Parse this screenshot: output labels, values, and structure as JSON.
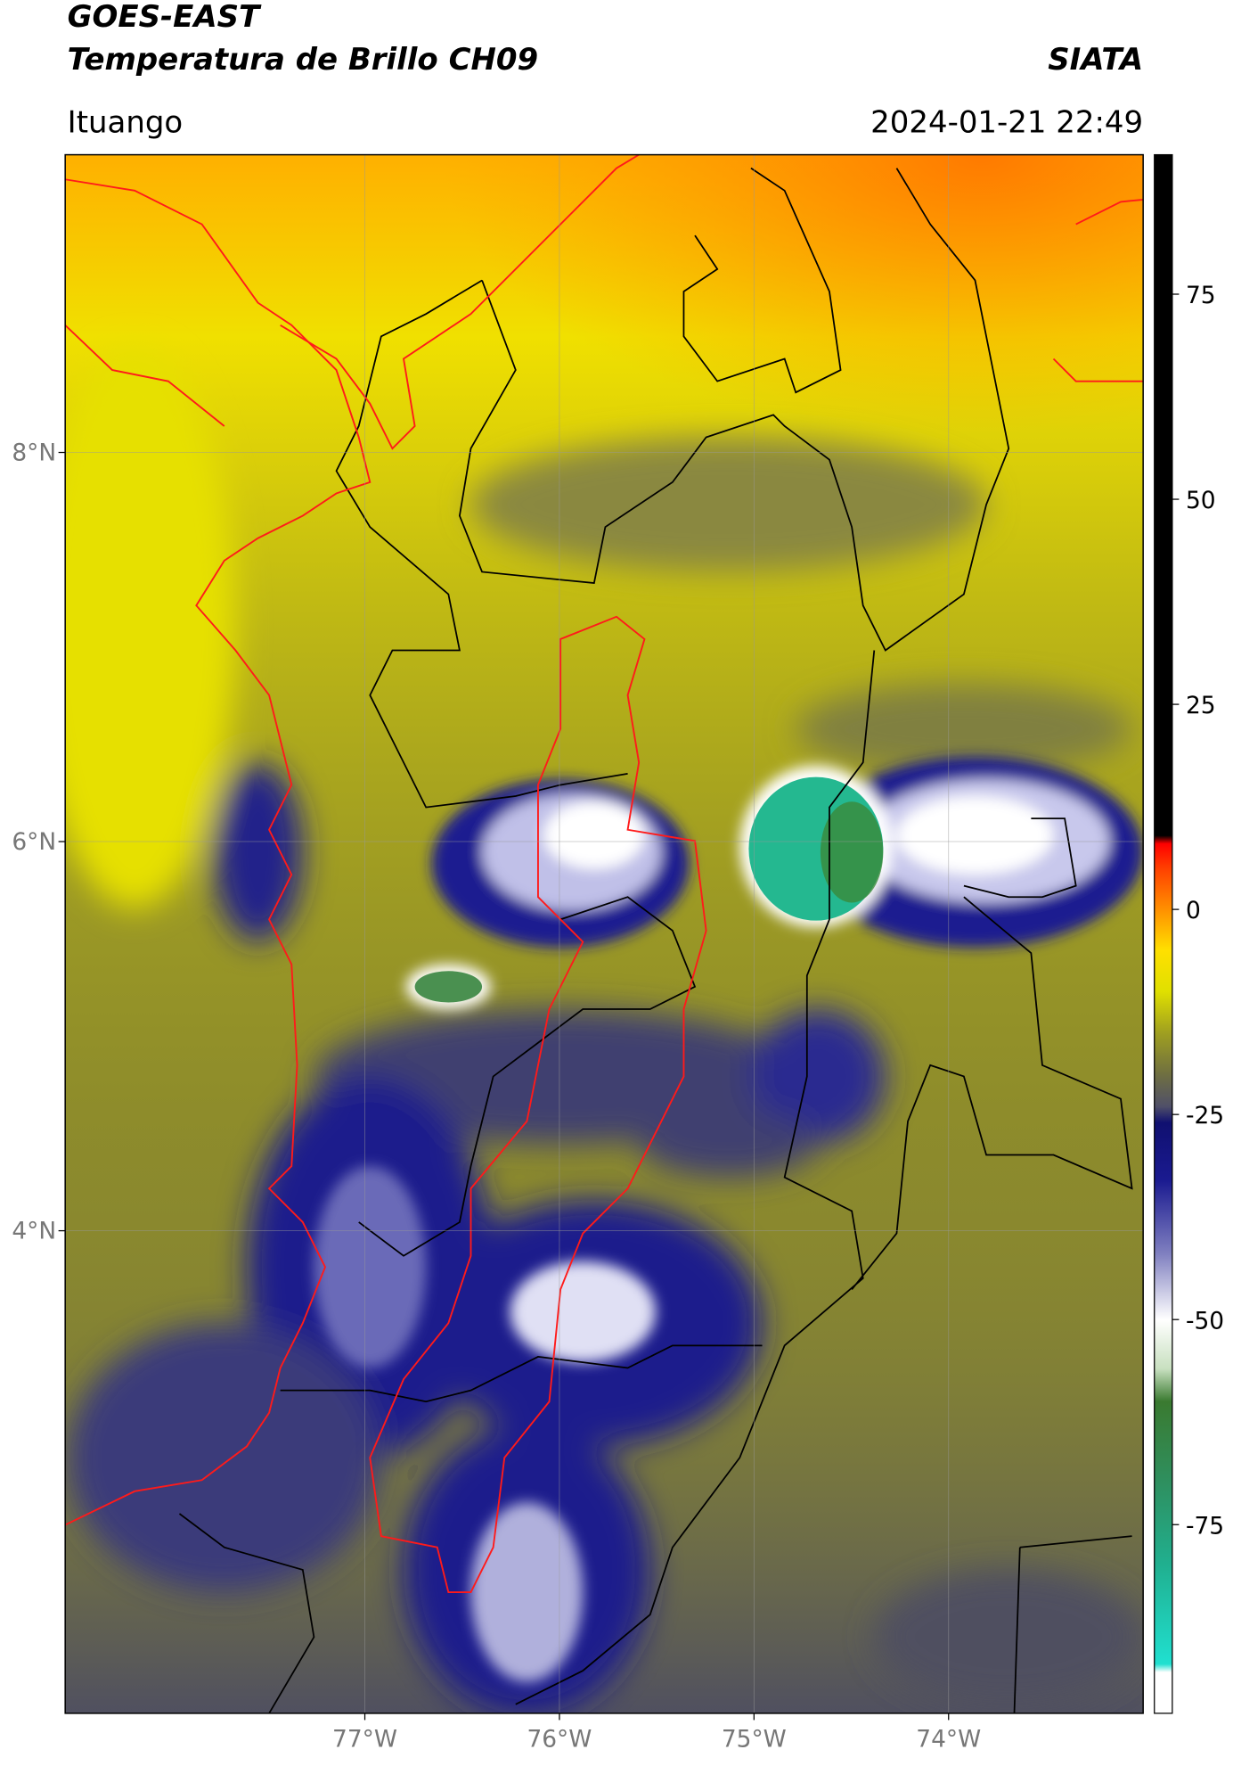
{
  "chart_data": {
    "type": "map",
    "title": "GOES-EAST",
    "subtitle": "Temperatura de Brillo CH09",
    "source": "SIATA",
    "location": "Ituango",
    "datetime": "2024-01-21 22:49",
    "xlim": [
      -78.54,
      -73.0
    ],
    "ylim": [
      1.52,
      9.53
    ],
    "xticks": [
      {
        "value": -77,
        "label": "77°W"
      },
      {
        "value": -76,
        "label": "76°W"
      },
      {
        "value": -75,
        "label": "75°W"
      },
      {
        "value": -74,
        "label": "74°W"
      }
    ],
    "yticks": [
      {
        "value": 4,
        "label": "4°N"
      },
      {
        "value": 6,
        "label": "6°N"
      },
      {
        "value": 8,
        "label": "8°N"
      }
    ],
    "grid": true,
    "colorbar": {
      "lim": [
        -98,
        92
      ],
      "ticks": [
        -75,
        -50,
        -25,
        0,
        25,
        50,
        75
      ],
      "colormap": [
        {
          "value": -98,
          "color": "#ffffff"
        },
        {
          "value": -93,
          "color": "#ffffff"
        },
        {
          "value": -92,
          "color": "#20e0d0"
        },
        {
          "value": -80,
          "color": "#20b090"
        },
        {
          "value": -70,
          "color": "#2e9060"
        },
        {
          "value": -60,
          "color": "#3a7a30"
        },
        {
          "value": -56,
          "color": "#c8e0c0"
        },
        {
          "value": -50,
          "color": "#ffffff"
        },
        {
          "value": -42,
          "color": "#8080c0"
        },
        {
          "value": -33,
          "color": "#1a1a90"
        },
        {
          "value": -26,
          "color": "#101070"
        },
        {
          "value": -24,
          "color": "#505068"
        },
        {
          "value": -20,
          "color": "#707040"
        },
        {
          "value": -15,
          "color": "#a0a020"
        },
        {
          "value": -10,
          "color": "#e0e000"
        },
        {
          "value": -5,
          "color": "#ffe000"
        },
        {
          "value": 0,
          "color": "#ff9000"
        },
        {
          "value": 5,
          "color": "#ff4000"
        },
        {
          "value": 8,
          "color": "#ff0000"
        },
        {
          "value": 9,
          "color": "#000000"
        },
        {
          "value": 92,
          "color": "#000000"
        }
      ]
    }
  }
}
